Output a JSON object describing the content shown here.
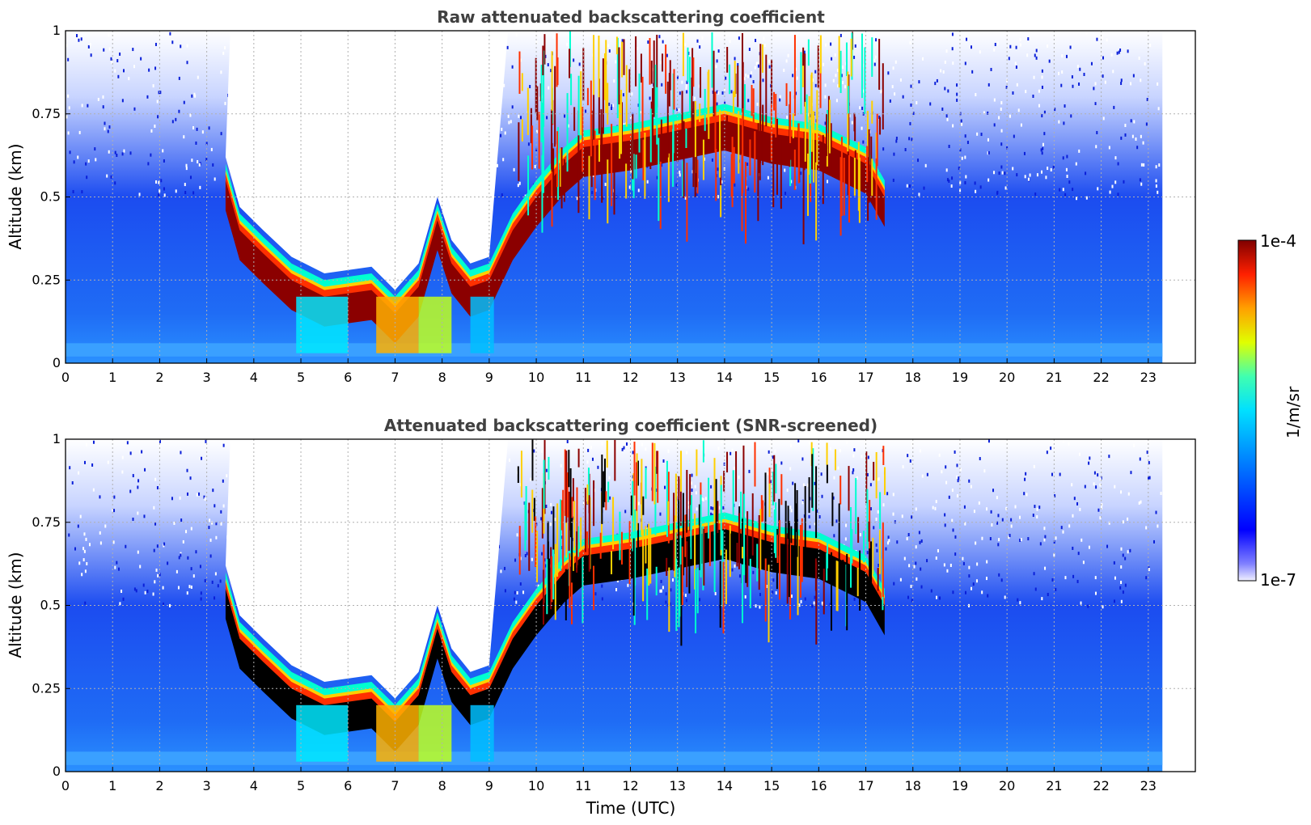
{
  "chart_data": [
    {
      "type": "heatmap",
      "title": "Raw attenuated backscattering coefficient",
      "xlabel": "",
      "ylabel": "Altitude (km)",
      "xlim": [
        0,
        24
      ],
      "ylim": [
        0,
        1
      ],
      "x_ticks": [
        "0",
        "1",
        "2",
        "3",
        "4",
        "5",
        "6",
        "7",
        "8",
        "9",
        "10",
        "11",
        "12",
        "13",
        "14",
        "15",
        "16",
        "17",
        "18",
        "19",
        "20",
        "21",
        "22",
        "23"
      ],
      "y_ticks": [
        "0",
        "0.25",
        "0.5",
        "0.75",
        "1"
      ],
      "data_time_range": [
        0,
        23.3
      ],
      "grid": true,
      "features": {
        "main_layer_top_km": [
          [
            3.4,
            0.6
          ],
          [
            3.7,
            0.45
          ],
          [
            4.2,
            0.38
          ],
          [
            4.8,
            0.3
          ],
          [
            5.5,
            0.25
          ],
          [
            6.5,
            0.27
          ],
          [
            7.0,
            0.2
          ],
          [
            7.5,
            0.28
          ],
          [
            7.9,
            0.48
          ],
          [
            8.2,
            0.35
          ],
          [
            8.6,
            0.28
          ],
          [
            9.0,
            0.3
          ],
          [
            9.5,
            0.45
          ],
          [
            10.0,
            0.55
          ],
          [
            10.6,
            0.65
          ],
          [
            11.0,
            0.7
          ],
          [
            12.0,
            0.72
          ],
          [
            13.0,
            0.75
          ],
          [
            14.0,
            0.78
          ],
          [
            15.0,
            0.74
          ],
          [
            16.0,
            0.72
          ],
          [
            17.0,
            0.65
          ],
          [
            17.4,
            0.55
          ]
        ],
        "colorbar_range": [
          "1e-7",
          "1e-4"
        ]
      }
    },
    {
      "type": "heatmap",
      "title": "Attenuated backscattering coefficient (SNR-screened)",
      "xlabel": "Time (UTC)",
      "ylabel": "Altitude (km)",
      "xlim": [
        0,
        24
      ],
      "ylim": [
        0,
        1
      ],
      "x_ticks": [
        "0",
        "1",
        "2",
        "3",
        "4",
        "5",
        "6",
        "7",
        "8",
        "9",
        "10",
        "11",
        "12",
        "13",
        "14",
        "15",
        "16",
        "17",
        "18",
        "19",
        "20",
        "21",
        "22",
        "23"
      ],
      "y_ticks": [
        "0",
        "0.25",
        "0.5",
        "0.75",
        "1"
      ],
      "data_time_range": [
        0,
        23.3
      ],
      "grid": true,
      "features": {
        "main_layer_top_km": [
          [
            3.4,
            0.6
          ],
          [
            3.7,
            0.45
          ],
          [
            4.2,
            0.38
          ],
          [
            4.8,
            0.3
          ],
          [
            5.5,
            0.25
          ],
          [
            6.5,
            0.27
          ],
          [
            7.0,
            0.2
          ],
          [
            7.5,
            0.28
          ],
          [
            7.9,
            0.48
          ],
          [
            8.2,
            0.35
          ],
          [
            8.6,
            0.28
          ],
          [
            9.0,
            0.3
          ],
          [
            9.5,
            0.45
          ],
          [
            10.0,
            0.55
          ],
          [
            10.6,
            0.65
          ],
          [
            11.0,
            0.7
          ],
          [
            12.0,
            0.72
          ],
          [
            13.0,
            0.75
          ],
          [
            14.0,
            0.78
          ],
          [
            15.0,
            0.74
          ],
          [
            16.0,
            0.72
          ],
          [
            17.0,
            0.65
          ],
          [
            17.4,
            0.55
          ]
        ],
        "colorbar_range": [
          "1e-7",
          "1e-4"
        ]
      }
    }
  ],
  "colorbar": {
    "label": "1/m/sr",
    "top_label": "1e-4",
    "bottom_label": "1e-7",
    "colormap": [
      "#ffffff",
      "#0000ff",
      "#00c8ff",
      "#00ffc8",
      "#ffff00",
      "#ff6a00",
      "#8b0000"
    ]
  },
  "colors": {
    "background_fill": "#ffffff",
    "clear_air": "#1c4cf0",
    "surface_layer": "#2a8cff",
    "layer_peak": "#8b0000",
    "screened_peak": "#000000",
    "axis": "#000000",
    "title_text": "#404040",
    "grid": "#b0b0b0"
  }
}
